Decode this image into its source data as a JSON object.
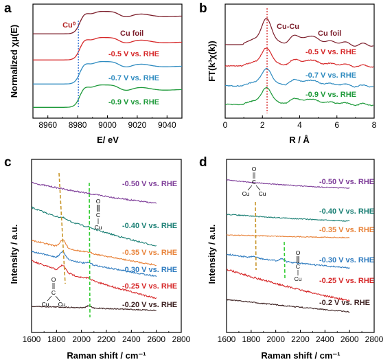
{
  "panels": {
    "a": {
      "letter": "a",
      "ylabel": "Normalized χμ(E)",
      "xlabel": "E/ eV",
      "xticks": [
        8960,
        8980,
        9000,
        9020,
        9040
      ],
      "xlim": [
        8950,
        9050
      ],
      "marker_label": "Cu⁰",
      "marker_x": 8980.5
    },
    "b": {
      "letter": "b",
      "ylabel": "FT(k³χ(k))",
      "xlabel": "R / Å",
      "xticks": [
        0,
        2,
        4,
        6,
        8
      ],
      "xlim": [
        0,
        8
      ],
      "marker_label": "Cu-Cu",
      "marker_x": 2.25
    },
    "c": {
      "letter": "c",
      "ylabel": "Intensity / a.u.",
      "xlabel": "Raman shift / cm⁻¹",
      "xticks": [
        1600,
        1800,
        2000,
        2200,
        2400,
        2600,
        2800
      ],
      "xlim": [
        1600,
        2800
      ],
      "bridge_x": 1850,
      "atop_x": 2060,
      "mol_atop": [
        "O",
        "C",
        "Cu"
      ],
      "mol_bridge": [
        "O",
        "C",
        "Cu",
        "Cu"
      ]
    },
    "d": {
      "letter": "d",
      "ylabel": "Intensity / a.u.",
      "xlabel": "Raman shift / cm⁻¹",
      "xticks": [
        1600,
        1800,
        2000,
        2200,
        2400,
        2600,
        2800
      ],
      "xlim": [
        1600,
        2800
      ],
      "bridge_x": 1830,
      "atop_x": 2050,
      "mol_atop": [
        "O",
        "C",
        "Cu"
      ],
      "mol_bridge": [
        "O",
        "C",
        "Cu",
        "Cu"
      ]
    }
  },
  "chart_data": [
    {
      "panel": "a",
      "type": "line",
      "ylabel": "Normalized χμ(E)",
      "xlabel": "E/ eV",
      "xlim": [
        8950,
        9050
      ],
      "series": [
        {
          "name": "Cu foil",
          "color": "#7b1d2a"
        },
        {
          "name": "-0.5 V vs. RHE",
          "color": "#d62728"
        },
        {
          "name": "-0.7 V vs. RHE",
          "color": "#2e8bc0"
        },
        {
          "name": "-0.9 V vs. RHE",
          "color": "#1e9a3a"
        }
      ],
      "annotations": [
        "Cu⁰"
      ]
    },
    {
      "panel": "b",
      "type": "line",
      "ylabel": "FT(k³χ(k))",
      "xlabel": "R / Å",
      "xlim": [
        0,
        8
      ],
      "series": [
        {
          "name": "Cu foil",
          "color": "#7b1d2a"
        },
        {
          "name": "-0.5 V vs. RHE",
          "color": "#d62728"
        },
        {
          "name": "-0.7 V vs. RHE",
          "color": "#2e8bc0"
        },
        {
          "name": "-0.9 V vs. RHE",
          "color": "#1e9a3a"
        }
      ],
      "annotations": [
        "Cu-Cu"
      ]
    },
    {
      "panel": "c",
      "type": "line",
      "ylabel": "Intensity / a.u.",
      "xlabel": "Raman shift / cm⁻¹",
      "xlim": [
        1600,
        2800
      ],
      "series": [
        {
          "name": "-0.50 V vs. RHE",
          "color": "#7d3c98"
        },
        {
          "name": "-0.40 V vs. RHE",
          "color": "#1a7f74"
        },
        {
          "name": "-0.35 V vs. RHE",
          "color": "#e8833a"
        },
        {
          "name": "-0.30 V vs. RHE",
          "color": "#2e7bbf"
        },
        {
          "name": "-0.25 V vs. RHE",
          "color": "#d62728"
        },
        {
          "name": "-0.20 V vs. RHE",
          "color": "#3b1f1f"
        }
      ]
    },
    {
      "panel": "d",
      "type": "line",
      "ylabel": "Intensity / a.u.",
      "xlabel": "Raman shift / cm⁻¹",
      "xlim": [
        1600,
        2800
      ],
      "series": [
        {
          "name": "-0.50 V vs. RHE",
          "color": "#7d3c98"
        },
        {
          "name": "-0.40 V vs. RHE",
          "color": "#1a7f74"
        },
        {
          "name": "-0.35 V vs. RHE",
          "color": "#e8833a"
        },
        {
          "name": "-0.30 V vs. RHE",
          "color": "#2e7bbf"
        },
        {
          "name": "-0.25 V vs. RHE",
          "color": "#d62728"
        },
        {
          "name": "-0.2 V vs. RHE",
          "color": "#3b1f1f"
        }
      ]
    }
  ]
}
